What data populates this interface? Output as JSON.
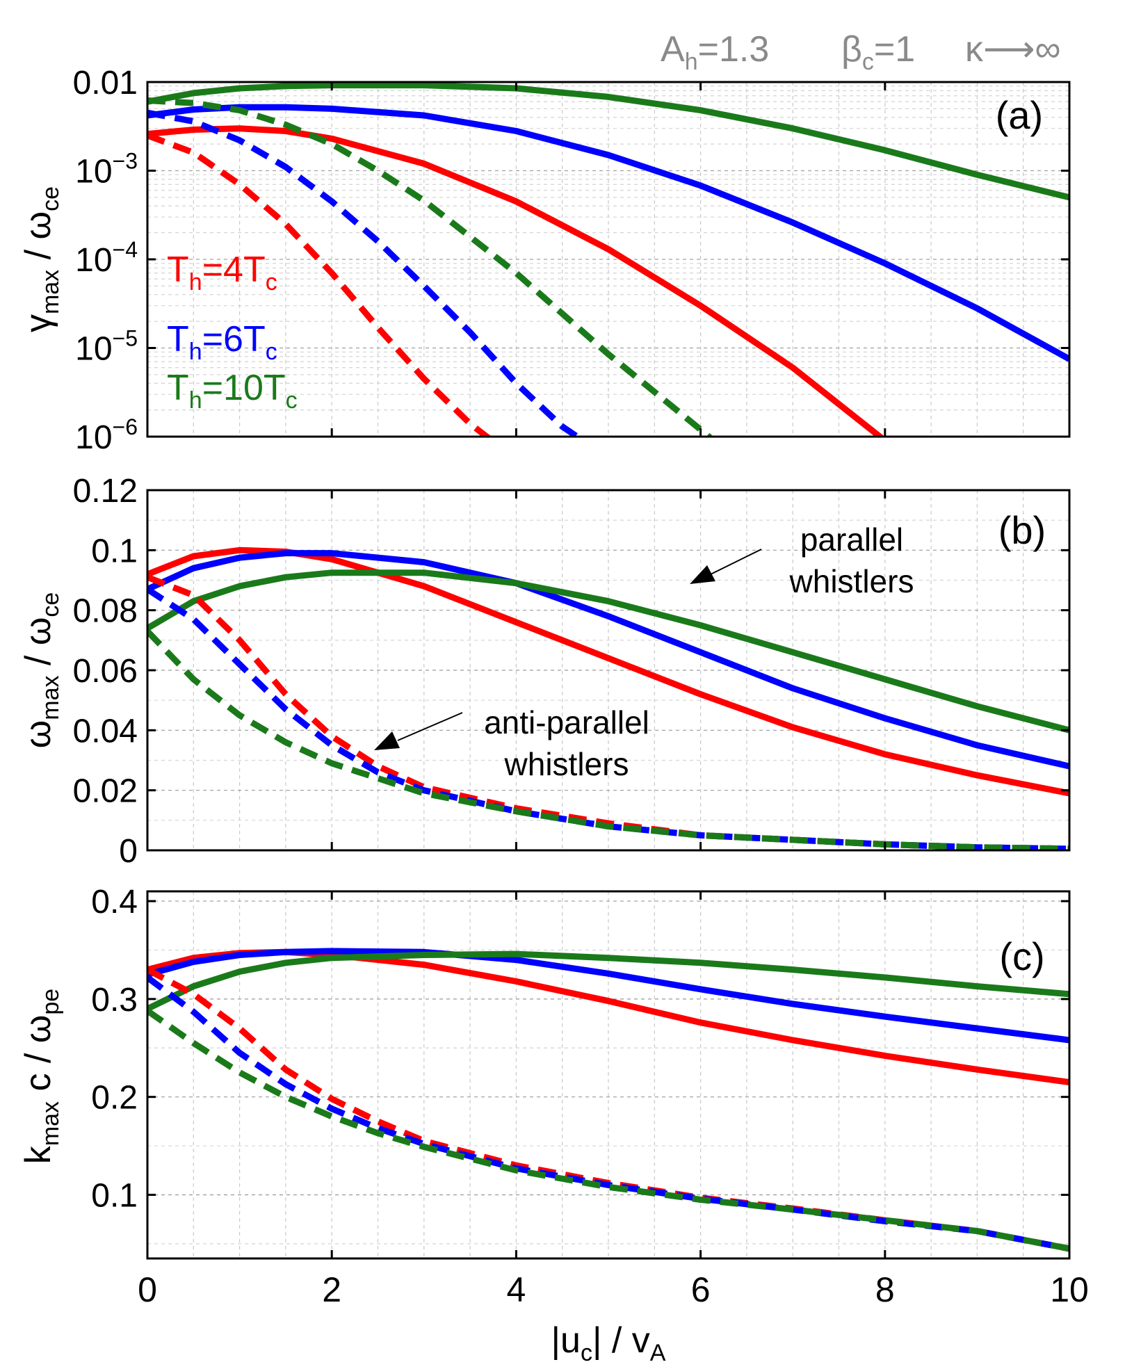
{
  "figure": {
    "header": {
      "anisotropy": [
        "A",
        "h",
        "=1.3"
      ],
      "beta": [
        "β",
        "c",
        "=1"
      ],
      "kappa": "κ⟶∞"
    },
    "xlabel": [
      "|u",
      "c",
      "| / v",
      "A"
    ],
    "legend": [
      {
        "parts": [
          "T",
          "h",
          "=4T",
          "c"
        ],
        "color": "#ff0000"
      },
      {
        "parts": [
          "T",
          "h",
          "=6T",
          "c"
        ],
        "color": "#0000ff"
      },
      {
        "parts": [
          "T",
          "h",
          "=10T",
          "c"
        ],
        "color": "#1a7a1a"
      }
    ],
    "annotations": {
      "parallel": [
        "parallel",
        "whistlers"
      ],
      "antiparallel": [
        "anti-parallel",
        "whistlers"
      ]
    },
    "colors": {
      "red": "#ff0000",
      "blue": "#0000ff",
      "green": "#1a7a1a",
      "gray": "#8a8a8a"
    },
    "line_styles": {
      "solid": "parallel whistlers",
      "dashed": "anti-parallel whistlers"
    }
  },
  "chart_data": [
    {
      "type": "line",
      "panel": "(a)",
      "ylabel": [
        "γ",
        "max",
        " / ω",
        "ce"
      ],
      "yscale": "log",
      "xlim": [
        0,
        10
      ],
      "ylim": [
        1e-06,
        0.01
      ],
      "xticks": [
        0,
        2,
        4,
        6,
        8,
        10
      ],
      "yticks": [
        {
          "v": 0.01,
          "base": "0.01",
          "exp": ""
        },
        {
          "v": 0.001,
          "base": "10",
          "exp": "−3"
        },
        {
          "v": 0.0001,
          "base": "10",
          "exp": "−4"
        },
        {
          "v": 1e-05,
          "base": "10",
          "exp": "−5"
        },
        {
          "v": 1e-06,
          "base": "10",
          "exp": "−6"
        }
      ],
      "series": [
        {
          "name": "T_h=4T_c parallel",
          "color": "red",
          "dash": false,
          "x": [
            0,
            0.5,
            1,
            1.5,
            2,
            3,
            4,
            5,
            6,
            7,
            8
          ],
          "y": [
            0.0026,
            0.0029,
            0.003,
            0.0028,
            0.0023,
            0.0012,
            0.00045,
            0.00013,
            3e-05,
            6e-06,
            9e-07
          ]
        },
        {
          "name": "T_h=6T_c parallel",
          "color": "blue",
          "dash": false,
          "x": [
            0,
            0.5,
            1,
            1.5,
            2,
            3,
            4,
            5,
            6,
            7,
            8,
            9,
            10
          ],
          "y": [
            0.0042,
            0.0049,
            0.0052,
            0.0052,
            0.005,
            0.0042,
            0.0028,
            0.0015,
            0.00068,
            0.00026,
            9e-05,
            2.8e-05,
            7.5e-06
          ]
        },
        {
          "name": "T_h=10T_c parallel",
          "color": "green",
          "dash": false,
          "x": [
            0,
            0.5,
            1,
            1.5,
            2,
            3,
            4,
            5,
            6,
            7,
            8,
            9,
            10
          ],
          "y": [
            0.006,
            0.0075,
            0.0085,
            0.009,
            0.0092,
            0.0092,
            0.0085,
            0.0068,
            0.0048,
            0.003,
            0.0017,
            0.0009,
            0.0005
          ]
        },
        {
          "name": "T_h=4T_c anti-parallel",
          "color": "red",
          "dash": true,
          "x": [
            0,
            0.5,
            1,
            1.5,
            2,
            2.5,
            3,
            3.5,
            3.8
          ],
          "y": [
            0.0025,
            0.0016,
            0.0007,
            0.00025,
            7e-05,
            1.7e-05,
            4.5e-06,
            1.4e-06,
            8e-07
          ]
        },
        {
          "name": "T_h=6T_c anti-parallel",
          "color": "blue",
          "dash": true,
          "x": [
            0,
            0.5,
            1,
            1.5,
            2,
            2.5,
            3,
            3.5,
            4,
            4.5,
            4.8
          ],
          "y": [
            0.0045,
            0.0036,
            0.0022,
            0.0011,
            0.00045,
            0.00016,
            5e-05,
            1.5e-05,
            4e-06,
            1.3e-06,
            8e-07
          ]
        },
        {
          "name": "T_h=10T_c anti-parallel",
          "color": "green",
          "dash": true,
          "x": [
            0,
            0.5,
            1,
            1.5,
            2,
            2.5,
            3,
            3.5,
            4,
            5,
            6,
            6.2
          ],
          "y": [
            0.0062,
            0.0058,
            0.0048,
            0.0033,
            0.002,
            0.001,
            0.00046,
            0.00018,
            7e-05,
            8.5e-06,
            1.2e-06,
            8e-07
          ]
        }
      ]
    },
    {
      "type": "line",
      "panel": "(b)",
      "ylabel": [
        "ω",
        "max",
        " / ω",
        "ce"
      ],
      "yscale": "linear",
      "xlim": [
        0,
        10
      ],
      "ylim": [
        0,
        0.12
      ],
      "xticks": [
        0,
        2,
        4,
        6,
        8,
        10
      ],
      "yticks": [
        {
          "v": 0,
          "base": "0",
          "exp": ""
        },
        {
          "v": 0.02,
          "base": "0.02",
          "exp": ""
        },
        {
          "v": 0.04,
          "base": "0.04",
          "exp": ""
        },
        {
          "v": 0.06,
          "base": "0.06",
          "exp": ""
        },
        {
          "v": 0.08,
          "base": "0.08",
          "exp": ""
        },
        {
          "v": 0.1,
          "base": "0.1",
          "exp": ""
        },
        {
          "v": 0.12,
          "base": "0.12",
          "exp": ""
        }
      ],
      "series": [
        {
          "name": "T_h=4T_c parallel",
          "color": "red",
          "dash": false,
          "x": [
            0,
            0.5,
            1,
            1.5,
            2,
            3,
            4,
            5,
            6,
            7,
            8,
            9,
            10
          ],
          "y": [
            0.092,
            0.098,
            0.1,
            0.0995,
            0.097,
            0.088,
            0.076,
            0.064,
            0.052,
            0.041,
            0.032,
            0.025,
            0.019
          ]
        },
        {
          "name": "T_h=6T_c parallel",
          "color": "blue",
          "dash": false,
          "x": [
            0,
            0.5,
            1,
            1.5,
            2,
            3,
            4,
            5,
            6,
            7,
            8,
            9,
            10
          ],
          "y": [
            0.087,
            0.094,
            0.0975,
            0.099,
            0.099,
            0.096,
            0.089,
            0.078,
            0.066,
            0.054,
            0.044,
            0.035,
            0.028
          ]
        },
        {
          "name": "T_h=10T_c parallel",
          "color": "green",
          "dash": false,
          "x": [
            0,
            0.5,
            1,
            1.5,
            2,
            3,
            4,
            5,
            6,
            7,
            8,
            9,
            10
          ],
          "y": [
            0.074,
            0.083,
            0.088,
            0.091,
            0.0925,
            0.0925,
            0.089,
            0.083,
            0.075,
            0.066,
            0.057,
            0.048,
            0.04
          ]
        },
        {
          "name": "T_h=4T_c anti-parallel",
          "color": "red",
          "dash": true,
          "x": [
            0,
            0.5,
            1,
            1.5,
            2,
            2.5,
            3,
            4,
            5,
            6,
            7,
            8,
            9,
            10
          ],
          "y": [
            0.091,
            0.085,
            0.07,
            0.052,
            0.038,
            0.028,
            0.021,
            0.014,
            0.009,
            0.005,
            0.0035,
            0.002,
            0.001,
            0.0005
          ]
        },
        {
          "name": "T_h=6T_c anti-parallel",
          "color": "blue",
          "dash": true,
          "x": [
            0,
            0.5,
            1,
            1.5,
            2,
            2.5,
            3,
            4,
            5,
            6,
            7,
            8,
            9,
            10
          ],
          "y": [
            0.087,
            0.077,
            0.062,
            0.047,
            0.035,
            0.026,
            0.02,
            0.013,
            0.008,
            0.005,
            0.0035,
            0.002,
            0.001,
            0.0005
          ]
        },
        {
          "name": "T_h=10T_c anti-parallel",
          "color": "green",
          "dash": true,
          "x": [
            0,
            0.5,
            1,
            1.5,
            2,
            2.5,
            3,
            4,
            5,
            6,
            7,
            8,
            9,
            10
          ],
          "y": [
            0.073,
            0.057,
            0.045,
            0.036,
            0.029,
            0.024,
            0.019,
            0.013,
            0.008,
            0.005,
            0.0035,
            0.002,
            0.001,
            0.0005
          ]
        }
      ]
    },
    {
      "type": "line",
      "panel": "(c)",
      "ylabel": [
        "k",
        "max",
        " c / ω",
        "pe"
      ],
      "yscale": "linear",
      "xlim": [
        0,
        10
      ],
      "ylim": [
        0.035,
        0.41
      ],
      "xticks": [
        0,
        2,
        4,
        6,
        8,
        10
      ],
      "yticks": [
        {
          "v": 0.1,
          "base": "0.1",
          "exp": ""
        },
        {
          "v": 0.2,
          "base": "0.2",
          "exp": ""
        },
        {
          "v": 0.3,
          "base": "0.3",
          "exp": ""
        },
        {
          "v": 0.4,
          "base": "0.4",
          "exp": ""
        }
      ],
      "series": [
        {
          "name": "T_h=4T_c parallel",
          "color": "red",
          "dash": false,
          "x": [
            0,
            0.5,
            1,
            1.5,
            2,
            3,
            4,
            5,
            6,
            7,
            8,
            9,
            10
          ],
          "y": [
            0.33,
            0.342,
            0.347,
            0.348,
            0.345,
            0.335,
            0.318,
            0.298,
            0.276,
            0.258,
            0.242,
            0.228,
            0.215
          ]
        },
        {
          "name": "T_h=6T_c parallel",
          "color": "blue",
          "dash": false,
          "x": [
            0,
            0.5,
            1,
            1.5,
            2,
            3,
            4,
            5,
            6,
            7,
            8,
            9,
            10
          ],
          "y": [
            0.325,
            0.338,
            0.345,
            0.348,
            0.349,
            0.348,
            0.34,
            0.326,
            0.31,
            0.295,
            0.282,
            0.27,
            0.258
          ]
        },
        {
          "name": "T_h=10T_c parallel",
          "color": "green",
          "dash": false,
          "x": [
            0,
            0.5,
            1,
            1.5,
            2,
            3,
            4,
            5,
            6,
            7,
            8,
            9,
            10
          ],
          "y": [
            0.29,
            0.313,
            0.328,
            0.337,
            0.342,
            0.345,
            0.346,
            0.342,
            0.337,
            0.33,
            0.322,
            0.313,
            0.305
          ]
        },
        {
          "name": "T_h=4T_c anti-parallel",
          "color": "red",
          "dash": true,
          "x": [
            0,
            0.5,
            1,
            1.5,
            2,
            2.5,
            3,
            4,
            5,
            6,
            7,
            8,
            9,
            10
          ],
          "y": [
            0.33,
            0.305,
            0.27,
            0.228,
            0.198,
            0.175,
            0.155,
            0.13,
            0.112,
            0.097,
            0.086,
            0.074,
            0.063,
            0.045
          ]
        },
        {
          "name": "T_h=6T_c anti-parallel",
          "color": "blue",
          "dash": true,
          "x": [
            0,
            0.5,
            1,
            1.5,
            2,
            2.5,
            3,
            4,
            5,
            6,
            7,
            8,
            9,
            10
          ],
          "y": [
            0.322,
            0.287,
            0.245,
            0.213,
            0.188,
            0.168,
            0.152,
            0.127,
            0.11,
            0.096,
            0.085,
            0.073,
            0.063,
            0.045
          ]
        },
        {
          "name": "T_h=10T_c anti-parallel",
          "color": "green",
          "dash": true,
          "x": [
            0,
            0.5,
            1,
            1.5,
            2,
            2.5,
            3,
            4,
            5,
            6,
            7,
            8,
            9,
            10
          ],
          "y": [
            0.288,
            0.255,
            0.225,
            0.2,
            0.18,
            0.163,
            0.149,
            0.125,
            0.108,
            0.095,
            0.085,
            0.074,
            0.063,
            0.045
          ]
        }
      ]
    }
  ]
}
